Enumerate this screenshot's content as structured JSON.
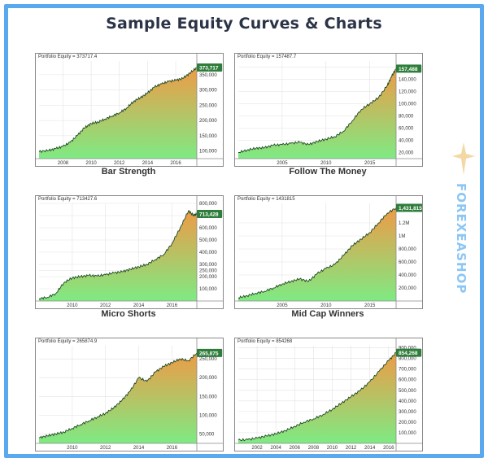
{
  "page": {
    "title": "Sample Equity Curves & Charts"
  },
  "watermark": {
    "text": "FOREXEASHOP",
    "icon": "star-icon"
  },
  "colors": {
    "fill_top": "#ee9b46",
    "fill_bottom": "#7fea83",
    "line": "#1e4a24",
    "badge": "#2f7d3b",
    "frame": "#5aa8ee"
  },
  "chart_data": [
    {
      "type": "area",
      "title": "Bar Strength",
      "equity_label": "Portfolio Equity = 373717.4",
      "badge": "373,717",
      "x_ticks": [
        "2008",
        "2010",
        "2012",
        "2014",
        "2016"
      ],
      "x_tick_values": [
        2008,
        2010,
        2012,
        2014,
        2016
      ],
      "y_ticks": [
        "100,000",
        "150,000",
        "200,000",
        "250,000",
        "300,000",
        "350,000"
      ],
      "y_tick_values": [
        100000,
        150000,
        200000,
        250000,
        300000,
        350000
      ],
      "xlim": [
        2006.3,
        2017.5
      ],
      "ylim": [
        75000,
        395000
      ],
      "x": [
        2006.3,
        2007,
        2007.5,
        2008,
        2008.5,
        2009,
        2009.5,
        2010,
        2010.5,
        2011,
        2011.5,
        2012,
        2012.5,
        2013,
        2013.5,
        2014,
        2014.5,
        2015,
        2015.5,
        2016,
        2016.5,
        2017,
        2017.5
      ],
      "values": [
        98000,
        102000,
        108000,
        115000,
        128000,
        150000,
        175000,
        190000,
        195000,
        205000,
        215000,
        225000,
        240000,
        262000,
        275000,
        290000,
        310000,
        320000,
        328000,
        332000,
        338000,
        355000,
        373717
      ]
    },
    {
      "type": "area",
      "title": "Follow The Money",
      "equity_label": "Portfolio Equity = 157487.7",
      "badge": "157,488",
      "x_ticks": [
        "2005",
        "2010",
        "2015"
      ],
      "x_tick_values": [
        2005,
        2010,
        2015
      ],
      "y_ticks": [
        "20,000",
        "40,000",
        "60,000",
        "80,000",
        "100,000",
        "120,000",
        "140,000",
        "160,000"
      ],
      "y_tick_values": [
        20000,
        40000,
        60000,
        80000,
        100000,
        120000,
        140000,
        160000
      ],
      "xlim": [
        2000,
        2018
      ],
      "ylim": [
        10000,
        170000
      ],
      "x": [
        2000,
        2001,
        2002,
        2003,
        2004,
        2005,
        2006,
        2007,
        2008,
        2009,
        2010,
        2011,
        2012,
        2013,
        2014,
        2015,
        2016,
        2017,
        2017.5,
        2018
      ],
      "values": [
        20000,
        24000,
        27000,
        28000,
        32000,
        33000,
        35000,
        37000,
        33000,
        38000,
        42000,
        46000,
        55000,
        72000,
        90000,
        100000,
        110000,
        130000,
        145000,
        157488
      ]
    },
    {
      "type": "area",
      "title": "Micro Shorts",
      "equity_label": "Portfolio Equity = 713427.6",
      "badge": "713,428",
      "x_ticks": [
        "2010",
        "2012",
        "2014",
        "2016"
      ],
      "x_tick_values": [
        2010,
        2012,
        2014,
        2016
      ],
      "y_ticks": [
        "100,000",
        "200,000",
        "250,000",
        "300,000",
        "400,000",
        "500,000",
        "600,000",
        "700,000",
        "800,000"
      ],
      "y_tick_values": [
        100000,
        200000,
        250000,
        300000,
        400000,
        500000,
        600000,
        700000,
        800000
      ],
      "xlim": [
        2008,
        2017.5
      ],
      "ylim": [
        0,
        800000
      ],
      "x": [
        2008,
        2008.5,
        2009,
        2009.5,
        2010,
        2010.5,
        2011,
        2011.5,
        2012,
        2012.5,
        2013,
        2013.5,
        2014,
        2014.5,
        2015,
        2015.5,
        2016,
        2016.5,
        2017,
        2017.3,
        2017.5
      ],
      "values": [
        20000,
        30000,
        60000,
        150000,
        190000,
        200000,
        210000,
        205000,
        215000,
        230000,
        240000,
        260000,
        280000,
        300000,
        340000,
        380000,
        470000,
        600000,
        740000,
        700000,
        713428
      ]
    },
    {
      "type": "area",
      "title": "Mid Cap Winners",
      "equity_label": "Portfolio Equity = 1431815",
      "badge": "1,431,815",
      "x_ticks": [
        "2005",
        "2010",
        "2015"
      ],
      "x_tick_values": [
        2005,
        2010,
        2015
      ],
      "y_ticks": [
        "200,000",
        "400,000",
        "600,000",
        "800,000",
        "1M",
        "1.2M"
      ],
      "y_tick_values": [
        200000,
        400000,
        600000,
        800000,
        1000000,
        1200000
      ],
      "xlim": [
        2000,
        2018
      ],
      "ylim": [
        0,
        1500000
      ],
      "x": [
        2000,
        2001,
        2002,
        2003,
        2004,
        2005,
        2006,
        2007,
        2008,
        2009,
        2010,
        2011,
        2012,
        2013,
        2014,
        2015,
        2016,
        2017,
        2018
      ],
      "values": [
        50000,
        80000,
        120000,
        150000,
        200000,
        260000,
        300000,
        340000,
        300000,
        420000,
        500000,
        560000,
        700000,
        850000,
        950000,
        1050000,
        1200000,
        1350000,
        1431815
      ]
    },
    {
      "type": "area",
      "title": "",
      "equity_label": "Portfolio Equity = 265874.9",
      "badge": "265,875",
      "x_ticks": [
        "2010",
        "2012",
        "2014",
        "2016"
      ],
      "x_tick_values": [
        2010,
        2012,
        2014,
        2016
      ],
      "y_ticks": [
        "50,000",
        "100,000",
        "150,000",
        "200,000",
        "250,000"
      ],
      "y_tick_values": [
        50000,
        100000,
        150000,
        200000,
        250000
      ],
      "xlim": [
        2008,
        2017.5
      ],
      "ylim": [
        25000,
        285000
      ],
      "x": [
        2008,
        2008.5,
        2009,
        2009.5,
        2010,
        2010.5,
        2011,
        2011.5,
        2012,
        2012.5,
        2013,
        2013.5,
        2014,
        2014.5,
        2015,
        2015.5,
        2016,
        2016.5,
        2017,
        2017.5
      ],
      "values": [
        40000,
        45000,
        50000,
        55000,
        65000,
        75000,
        85000,
        95000,
        105000,
        120000,
        140000,
        165000,
        200000,
        190000,
        215000,
        230000,
        240000,
        250000,
        245000,
        265875
      ]
    },
    {
      "type": "area",
      "title": "",
      "equity_label": "Portfolio Equity = 854268",
      "badge": "854,268",
      "x_ticks": [
        "2002",
        "2004",
        "2006",
        "2008",
        "2010",
        "2012",
        "2014",
        "2016"
      ],
      "x_tick_values": [
        2002,
        2004,
        2006,
        2008,
        2010,
        2012,
        2014,
        2016
      ],
      "y_ticks": [
        "100,000",
        "200,000",
        "300,000",
        "400,000",
        "500,000",
        "600,000",
        "700,000",
        "800,000",
        "900,000"
      ],
      "y_tick_values": [
        100000,
        200000,
        300000,
        400000,
        500000,
        600000,
        700000,
        800000,
        900000
      ],
      "xlim": [
        2000,
        2016.8
      ],
      "ylim": [
        0,
        920000
      ],
      "x": [
        2000,
        2001,
        2002,
        2003,
        2004,
        2005,
        2006,
        2007,
        2008,
        2009,
        2010,
        2011,
        2012,
        2013,
        2014,
        2015,
        2016,
        2016.8
      ],
      "values": [
        30000,
        35000,
        50000,
        70000,
        90000,
        120000,
        160000,
        200000,
        230000,
        270000,
        320000,
        380000,
        440000,
        500000,
        580000,
        680000,
        780000,
        854268
      ]
    }
  ]
}
